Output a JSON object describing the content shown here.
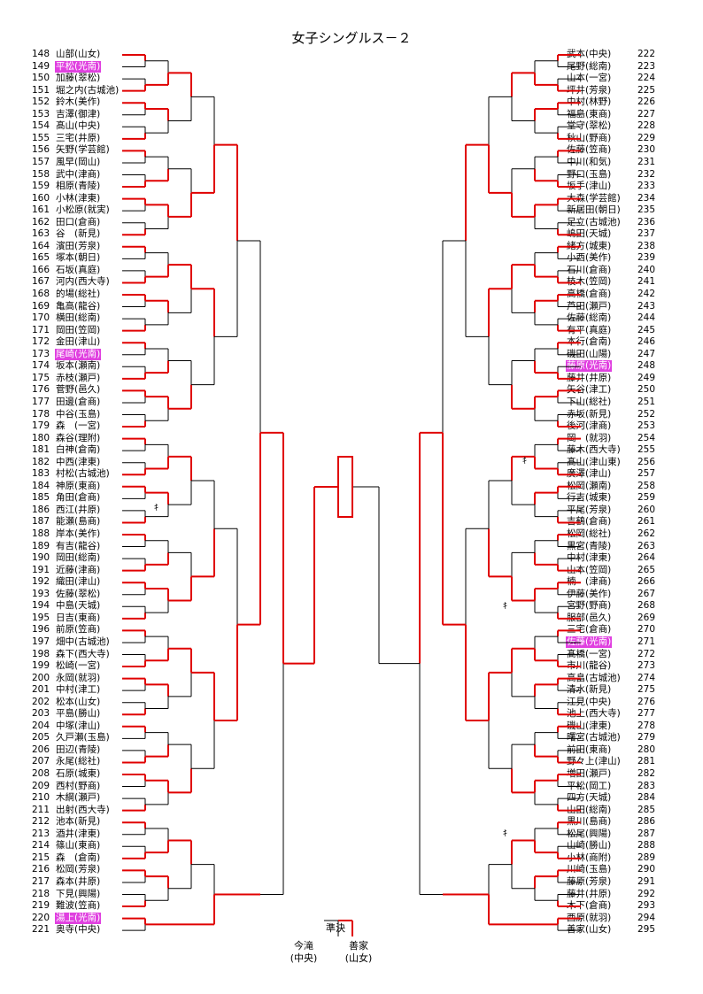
{
  "title": "女子シングルス－２",
  "semi_label": "準決",
  "finalists": [
    {
      "name": "今滝",
      "school": "(中央)"
    },
    {
      "name": "善家",
      "school": "(山女)"
    }
  ],
  "tick_mark": "ｷ",
  "colors": {
    "advance": "#e00000",
    "line": "#000000",
    "highlight": "#e040e0"
  },
  "left_entries": [
    {
      "no": "148",
      "name": "山部(山女)"
    },
    {
      "no": "149",
      "name": "平松(光南)",
      "hl": true
    },
    {
      "no": "150",
      "name": "加藤(翠松)"
    },
    {
      "no": "151",
      "name": "堀之内(古城池)"
    },
    {
      "no": "152",
      "name": "鈴木(美作)"
    },
    {
      "no": "153",
      "name": "吉澤(御津)"
    },
    {
      "no": "154",
      "name": "髙山(中央)"
    },
    {
      "no": "155",
      "name": "三宅(井原)"
    },
    {
      "no": "156",
      "name": "矢野(学芸館)"
    },
    {
      "no": "157",
      "name": "風早(岡山)"
    },
    {
      "no": "158",
      "name": "武中(津商)"
    },
    {
      "no": "159",
      "name": "相原(青陵)"
    },
    {
      "no": "160",
      "name": "小林(津東)"
    },
    {
      "no": "161",
      "name": "小松原(就実)"
    },
    {
      "no": "162",
      "name": "田口(倉商)"
    },
    {
      "no": "163",
      "name": "谷　(新見)"
    },
    {
      "no": "164",
      "name": "濱田(芳泉)"
    },
    {
      "no": "165",
      "name": "塚本(朝日)"
    },
    {
      "no": "166",
      "name": "石坂(真庭)"
    },
    {
      "no": "167",
      "name": "河内(西大寺)"
    },
    {
      "no": "168",
      "name": "的場(総社)"
    },
    {
      "no": "169",
      "name": "亀高(龍谷)"
    },
    {
      "no": "170",
      "name": "横田(総南)"
    },
    {
      "no": "171",
      "name": "岡田(笠岡)"
    },
    {
      "no": "172",
      "name": "金田(津山)"
    },
    {
      "no": "173",
      "name": "尾崎(光南)",
      "hl": true
    },
    {
      "no": "174",
      "name": "坂本(瀬南)"
    },
    {
      "no": "175",
      "name": "赤枝(瀬戸)"
    },
    {
      "no": "176",
      "name": "菅野(邑久)"
    },
    {
      "no": "177",
      "name": "田邊(倉商)"
    },
    {
      "no": "178",
      "name": "中谷(玉島)"
    },
    {
      "no": "179",
      "name": "森　(一宮)"
    },
    {
      "no": "180",
      "name": "森谷(理附)"
    },
    {
      "no": "181",
      "name": "白神(倉南)"
    },
    {
      "no": "182",
      "name": "中西(津東)"
    },
    {
      "no": "183",
      "name": "村松(古城池)"
    },
    {
      "no": "184",
      "name": "神原(東商)"
    },
    {
      "no": "185",
      "name": "角田(倉商)"
    },
    {
      "no": "186",
      "name": "西江(井原)"
    },
    {
      "no": "187",
      "name": "能瀬(島商)"
    },
    {
      "no": "188",
      "name": "岸本(美作)"
    },
    {
      "no": "189",
      "name": "有吉(龍谷)"
    },
    {
      "no": "190",
      "name": "岡田(総南)"
    },
    {
      "no": "191",
      "name": "近藤(津商)"
    },
    {
      "no": "192",
      "name": "織田(津山)"
    },
    {
      "no": "193",
      "name": "佐藤(翠松)"
    },
    {
      "no": "194",
      "name": "中島(天城)"
    },
    {
      "no": "195",
      "name": "日吉(東商)"
    },
    {
      "no": "196",
      "name": "前原(笠商)"
    },
    {
      "no": "197",
      "name": "畑中(古城池)"
    },
    {
      "no": "198",
      "name": "森下(西大寺)"
    },
    {
      "no": "199",
      "name": "松崎(一宮)"
    },
    {
      "no": "200",
      "name": "永岡(就羽)"
    },
    {
      "no": "201",
      "name": "中村(津工)"
    },
    {
      "no": "202",
      "name": "松本(山女)"
    },
    {
      "no": "203",
      "name": "平島(勝山)"
    },
    {
      "no": "204",
      "name": "中塚(津山)"
    },
    {
      "no": "205",
      "name": "久戸瀬(玉島)"
    },
    {
      "no": "206",
      "name": "田辺(青陵)"
    },
    {
      "no": "207",
      "name": "永尾(総社)"
    },
    {
      "no": "208",
      "name": "石原(城東)"
    },
    {
      "no": "209",
      "name": "西村(野商)"
    },
    {
      "no": "210",
      "name": "木綱(瀬戸)"
    },
    {
      "no": "211",
      "name": "出射(西大寺)"
    },
    {
      "no": "212",
      "name": "池本(新見)"
    },
    {
      "no": "213",
      "name": "酒井(津東)"
    },
    {
      "no": "214",
      "name": "篠山(東商)"
    },
    {
      "no": "215",
      "name": "森　(倉南)"
    },
    {
      "no": "216",
      "name": "松岡(芳泉)"
    },
    {
      "no": "217",
      "name": "森本(井原)"
    },
    {
      "no": "218",
      "name": "下見(興陽)"
    },
    {
      "no": "219",
      "name": "難波(笠商)"
    },
    {
      "no": "220",
      "name": "湯上(光南)",
      "hl": true
    },
    {
      "no": "221",
      "name": "奥寺(中央)"
    }
  ],
  "right_entries": [
    {
      "no": "222",
      "name": "武本(中央)"
    },
    {
      "no": "223",
      "name": "尾野(総南)"
    },
    {
      "no": "224",
      "name": "山本(一宮)"
    },
    {
      "no": "225",
      "name": "坪井(芳泉)"
    },
    {
      "no": "226",
      "name": "中村(林野)"
    },
    {
      "no": "227",
      "name": "福島(東商)"
    },
    {
      "no": "228",
      "name": "堂守(翠松)"
    },
    {
      "no": "229",
      "name": "秋山(野商)"
    },
    {
      "no": "230",
      "name": "佐藤(笠商)"
    },
    {
      "no": "231",
      "name": "中川(和気)"
    },
    {
      "no": "232",
      "name": "野口(玉島)"
    },
    {
      "no": "233",
      "name": "坂手(津山)"
    },
    {
      "no": "234",
      "name": "大森(学芸館)"
    },
    {
      "no": "235",
      "name": "新居田(朝日)"
    },
    {
      "no": "236",
      "name": "足立(古城池)"
    },
    {
      "no": "237",
      "name": "嶋田(天城)"
    },
    {
      "no": "238",
      "name": "緒方(城東)"
    },
    {
      "no": "239",
      "name": "小西(美作)"
    },
    {
      "no": "240",
      "name": "石川(倉商)"
    },
    {
      "no": "241",
      "name": "枝木(笠岡)"
    },
    {
      "no": "242",
      "name": "高橋(倉商)"
    },
    {
      "no": "243",
      "name": "芦田(瀬戸)"
    },
    {
      "no": "244",
      "name": "佐藤(総南)"
    },
    {
      "no": "245",
      "name": "有平(真庭)"
    },
    {
      "no": "246",
      "name": "本行(倉南)"
    },
    {
      "no": "247",
      "name": "磯田(山陽)"
    },
    {
      "no": "248",
      "name": "藤原(光南)",
      "hl": true
    },
    {
      "no": "249",
      "name": "藤井(井原)"
    },
    {
      "no": "250",
      "name": "矢谷(津工)"
    },
    {
      "no": "251",
      "name": "下山(総社)"
    },
    {
      "no": "252",
      "name": "赤坂(新見)"
    },
    {
      "no": "253",
      "name": "後河(津商)"
    },
    {
      "no": "254",
      "name": "岡　(就羽)"
    },
    {
      "no": "255",
      "name": "藤木(西大寺)"
    },
    {
      "no": "256",
      "name": "髙山(津山東)"
    },
    {
      "no": "257",
      "name": "廣澤(津山)"
    },
    {
      "no": "258",
      "name": "松岡(瀬南)"
    },
    {
      "no": "259",
      "name": "行吉(城東)"
    },
    {
      "no": "260",
      "name": "平尾(芳泉)"
    },
    {
      "no": "261",
      "name": "吉鶴(倉商)"
    },
    {
      "no": "262",
      "name": "松岡(総社)"
    },
    {
      "no": "263",
      "name": "黒宮(青陵)"
    },
    {
      "no": "264",
      "name": "中村(津東)"
    },
    {
      "no": "265",
      "name": "山本(笠岡)"
    },
    {
      "no": "266",
      "name": "楠　(津商)"
    },
    {
      "no": "267",
      "name": "伊藤(美作)"
    },
    {
      "no": "268",
      "name": "宮野(野商)"
    },
    {
      "no": "269",
      "name": "服部(邑久)"
    },
    {
      "no": "270",
      "name": "三宅(倉商)"
    },
    {
      "no": "271",
      "name": "佐藤(光南)",
      "hl": true
    },
    {
      "no": "272",
      "name": "髙橋(一宮)"
    },
    {
      "no": "273",
      "name": "市川(龍谷)"
    },
    {
      "no": "274",
      "name": "高畠(古城池)"
    },
    {
      "no": "275",
      "name": "清水(新見)"
    },
    {
      "no": "276",
      "name": "江見(中央)"
    },
    {
      "no": "277",
      "name": "池上(西大寺)"
    },
    {
      "no": "278",
      "name": "磯山(津東)"
    },
    {
      "no": "279",
      "name": "曙宮(古城池)"
    },
    {
      "no": "280",
      "name": "前田(東商)"
    },
    {
      "no": "281",
      "name": "野々上(津山)"
    },
    {
      "no": "282",
      "name": "増田(瀬戸)"
    },
    {
      "no": "283",
      "name": "平松(岡工)"
    },
    {
      "no": "284",
      "name": "四方(天城)"
    },
    {
      "no": "285",
      "name": "山田(総南)"
    },
    {
      "no": "286",
      "name": "黒川(島商)"
    },
    {
      "no": "287",
      "name": "松尾(興陽)"
    },
    {
      "no": "288",
      "name": "山崎(勝山)"
    },
    {
      "no": "289",
      "name": "小林(商附)"
    },
    {
      "no": "290",
      "name": "川崎(玉島)"
    },
    {
      "no": "291",
      "name": "藤原(芳泉)"
    },
    {
      "no": "292",
      "name": "藤井(井原)"
    },
    {
      "no": "293",
      "name": "木下(倉商)"
    },
    {
      "no": "294",
      "name": "西原(就羽)"
    },
    {
      "no": "295",
      "name": "善家(山女)"
    }
  ]
}
